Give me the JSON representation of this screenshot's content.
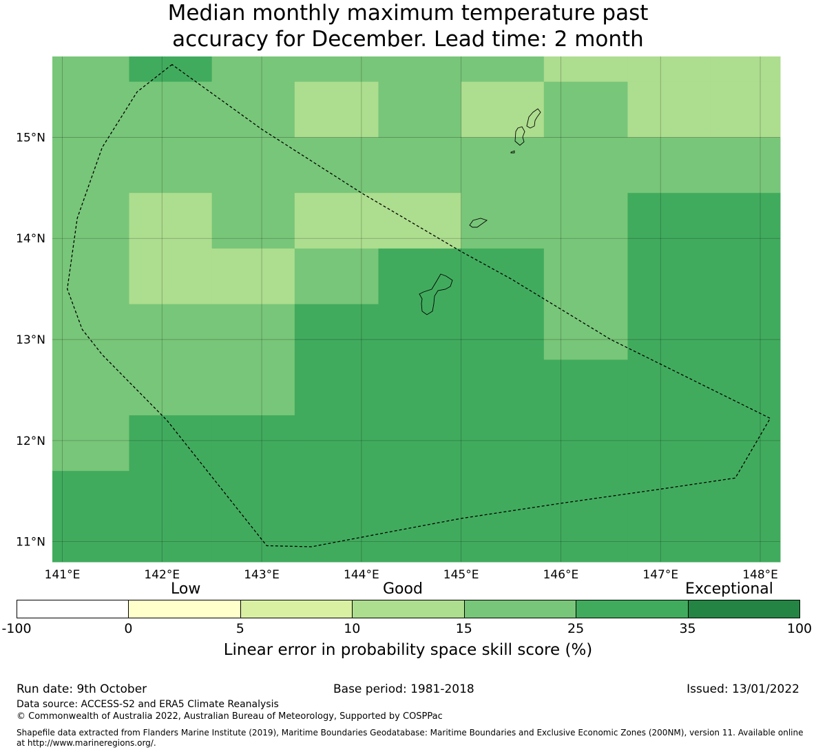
{
  "title_line1": "Median monthly maximum temperature past",
  "title_line2": "accuracy for December. Lead time: 2 month",
  "map": {
    "lon_labels": [
      "141°E",
      "142°E",
      "143°E",
      "144°E",
      "145°E",
      "146°E",
      "147°E",
      "148°E"
    ],
    "lat_labels": [
      "15°N",
      "14°N",
      "13°N",
      "12°N",
      "11°N"
    ],
    "lon_values": [
      141,
      142,
      143,
      144,
      145,
      146,
      147,
      148
    ],
    "lat_values": [
      15,
      14,
      13,
      12,
      11
    ],
    "extent": {
      "lon_min": 140.9,
      "lon_max": 148.2,
      "lat_min": 10.8,
      "lat_max": 15.8
    },
    "grid_rows": [
      {
        "lat_top": 15.8,
        "lat_bot": 15.55,
        "cells": [
          4,
          5,
          4,
          4,
          4,
          4,
          3,
          3,
          3
        ]
      },
      {
        "lat_top": 15.55,
        "lat_bot": 15.0,
        "cells": [
          4,
          4,
          4,
          3,
          4,
          3,
          4,
          3,
          3
        ]
      },
      {
        "lat_top": 15.0,
        "lat_bot": 14.45,
        "cells": [
          4,
          4,
          4,
          4,
          4,
          4,
          4,
          4,
          4
        ]
      },
      {
        "lat_top": 14.45,
        "lat_bot": 13.9,
        "cells": [
          4,
          3,
          4,
          3,
          3,
          4,
          4,
          5,
          5
        ]
      },
      {
        "lat_top": 13.9,
        "lat_bot": 13.35,
        "cells": [
          4,
          3,
          3,
          4,
          5,
          5,
          4,
          5,
          5
        ]
      },
      {
        "lat_top": 13.35,
        "lat_bot": 12.8,
        "cells": [
          4,
          4,
          4,
          5,
          5,
          5,
          4,
          5,
          5
        ]
      },
      {
        "lat_top": 12.8,
        "lat_bot": 12.25,
        "cells": [
          4,
          4,
          4,
          5,
          5,
          5,
          5,
          5,
          5
        ]
      },
      {
        "lat_top": 12.25,
        "lat_bot": 11.7,
        "cells": [
          4,
          5,
          5,
          5,
          5,
          5,
          5,
          5,
          5
        ]
      },
      {
        "lat_top": 11.7,
        "lat_bot": 10.8,
        "cells": [
          5,
          5,
          5,
          5,
          5,
          5,
          5,
          5,
          5
        ]
      }
    ],
    "grid_col_lons": [
      140.9,
      141.67,
      142.5,
      143.33,
      144.17,
      145.0,
      145.83,
      146.67,
      147.5,
      148.2
    ],
    "eez_boundary": [
      [
        142.1,
        15.72
      ],
      [
        141.75,
        15.45
      ],
      [
        141.4,
        14.9
      ],
      [
        141.15,
        14.2
      ],
      [
        141.05,
        13.5
      ],
      [
        141.2,
        13.1
      ],
      [
        141.4,
        12.85
      ],
      [
        142.05,
        12.2
      ],
      [
        143.05,
        10.96
      ],
      [
        143.5,
        10.95
      ],
      [
        144.3,
        11.1
      ],
      [
        145.0,
        11.23
      ],
      [
        146.0,
        11.38
      ],
      [
        147.0,
        11.52
      ],
      [
        147.75,
        11.63
      ],
      [
        148.1,
        12.22
      ],
      [
        146.5,
        13.0
      ],
      [
        145.5,
        13.6
      ],
      [
        145.0,
        13.87
      ],
      [
        144.0,
        14.45
      ],
      [
        143.0,
        15.08
      ],
      [
        142.1,
        15.72
      ]
    ]
  },
  "colorbar": {
    "category_low": "Low",
    "category_good": "Good",
    "category_exceptional": "Exceptional",
    "ticks": [
      "-100",
      "0",
      "5",
      "10",
      "15",
      "25",
      "35",
      "100"
    ],
    "colors": [
      "#ffffff",
      "#ffffcc",
      "#d9f0a3",
      "#addd8e",
      "#78c679",
      "#41ab5d",
      "#238443"
    ],
    "label": "Linear error in probability space skill score (%)"
  },
  "footer": {
    "run_date": "Run date: 9th October",
    "base_period": "Base period: 1981-2018",
    "issued": "Issued: 13/01/2022",
    "data_source": "Data source: ACCESS-S2 and ERA5 Climate Reanalysis",
    "copyright": "© Commonwealth of Australia 2022, Australian Bureau of Meteorology, Supported by COSPPac",
    "shapefile_line1": "Shapefile data extracted from Flanders Marine Institute (2019), Maritime Boundaries Geodatabase: Maritime Boundaries and Exclusive Economic Zones (200NM), version 11. Available online",
    "shapefile_line2": "at http://www.marineregions.org/."
  }
}
